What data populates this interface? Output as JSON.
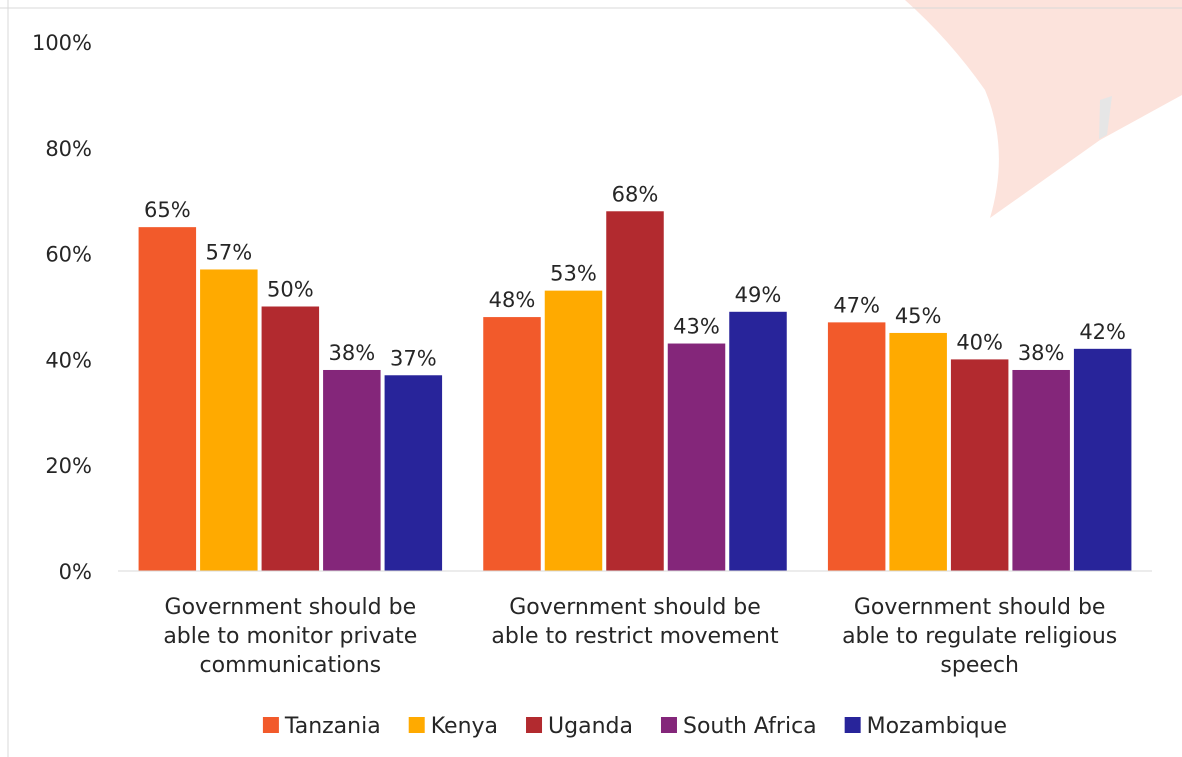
{
  "chart_data": {
    "type": "bar",
    "categories": [
      "Government should be able to monitor private communications",
      "Government should be able to restrict movement",
      "Government should be able to regulate religious speech"
    ],
    "category_lines": [
      [
        "Government should be",
        "able to monitor private",
        "communications"
      ],
      [
        "Government should be",
        "able to restrict movement"
      ],
      [
        "Government should be",
        "able to regulate religious",
        "speech"
      ]
    ],
    "series": [
      {
        "name": "Tanzania",
        "color": "#F25A2B",
        "values": [
          65,
          48,
          47
        ]
      },
      {
        "name": "Kenya",
        "color": "#FFAA00",
        "values": [
          57,
          53,
          45
        ]
      },
      {
        "name": "Uganda",
        "color": "#B22A2F",
        "values": [
          50,
          68,
          40
        ]
      },
      {
        "name": "South Africa",
        "color": "#84267A",
        "values": [
          38,
          43,
          38
        ]
      },
      {
        "name": "Mozambique",
        "color": "#28249A",
        "values": [
          37,
          49,
          42
        ]
      }
    ],
    "value_suffix": "%",
    "ylim": [
      0,
      100
    ],
    "yticks": [
      0,
      20,
      40,
      60,
      80,
      100
    ],
    "ytick_labels": [
      "0%",
      "20%",
      "40%",
      "60%",
      "80%",
      "100%"
    ],
    "title": "",
    "xlabel": "",
    "ylabel": "",
    "grid": false,
    "legend_position": "bottom",
    "decoration": {
      "shape": "speech-bubble",
      "color": "#FCE3DC",
      "accent": "#E3E3E3"
    }
  }
}
